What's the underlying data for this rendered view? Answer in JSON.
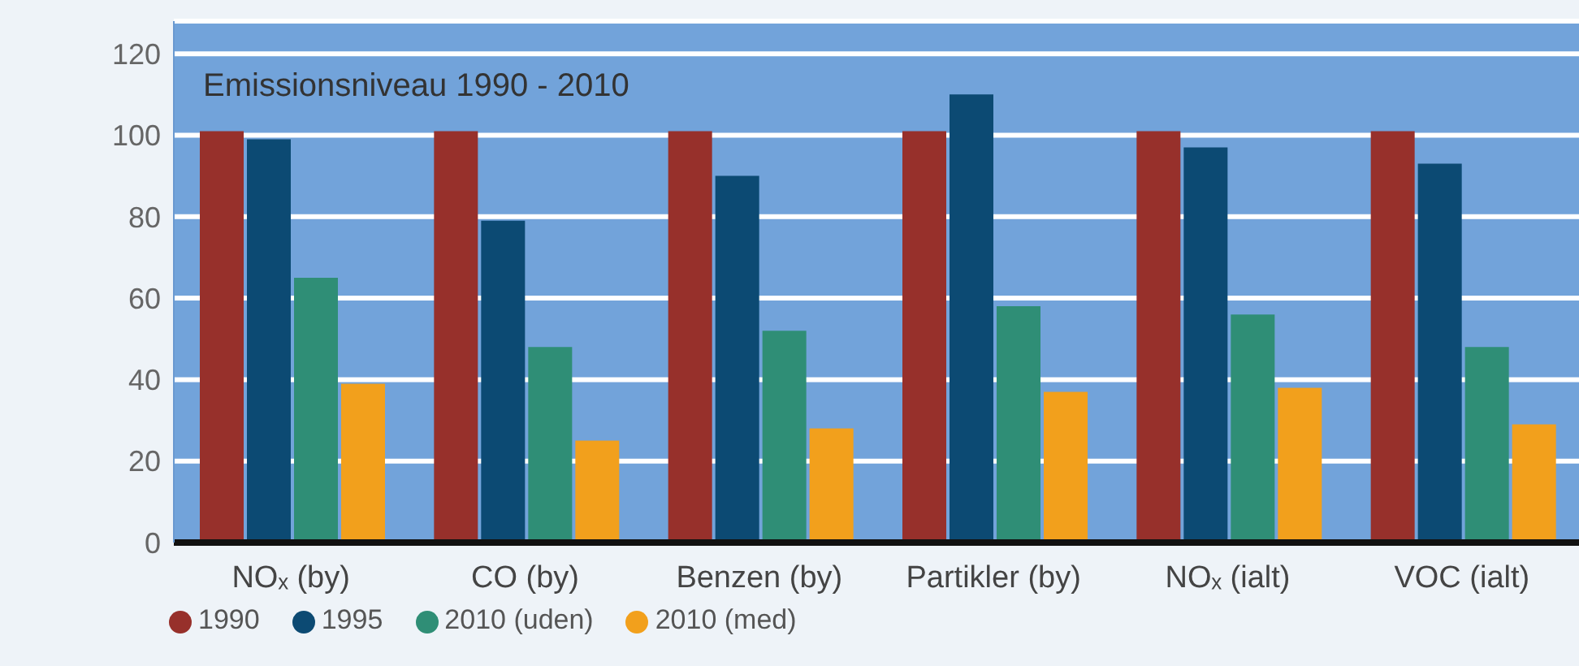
{
  "chart_data": {
    "type": "bar",
    "title": "Emissionsniveau 1990 - 2010",
    "categories": [
      "NOₓ (by)",
      "CO (by)",
      "Benzen (by)",
      "Partikler (by)",
      "NOₓ (ialt)",
      "VOC (ialt)"
    ],
    "series": [
      {
        "name": "1990",
        "color": "#97302b",
        "values": [
          101,
          101,
          101,
          101,
          101,
          101
        ]
      },
      {
        "name": "1995",
        "color": "#0c4a73",
        "values": [
          99,
          79,
          90,
          110,
          97,
          93
        ]
      },
      {
        "name": "2010 (uden)",
        "color": "#2f8e76",
        "values": [
          65,
          48,
          52,
          58,
          56,
          48
        ]
      },
      {
        "name": "2010 (med)",
        "color": "#f2a01c",
        "values": [
          39,
          25,
          28,
          37,
          38,
          29
        ]
      }
    ],
    "ylim": [
      0,
      128
    ],
    "yticks": [
      0,
      20,
      40,
      60,
      80,
      100,
      120
    ],
    "grid": "y",
    "legend": "bottom left"
  }
}
